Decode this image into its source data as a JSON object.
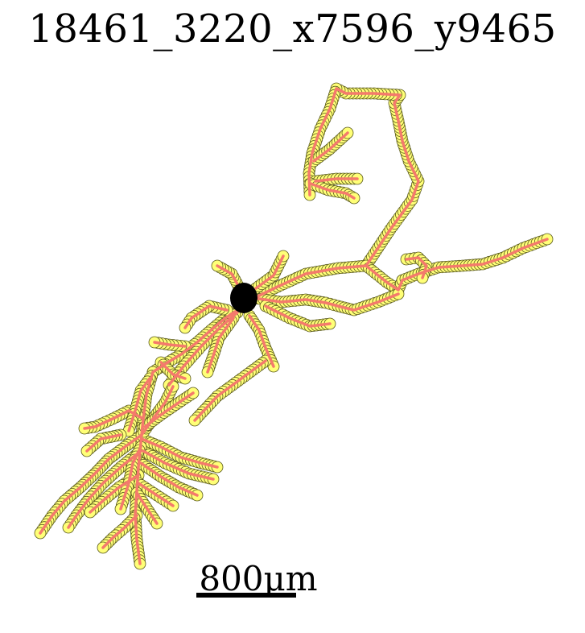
{
  "title": "18461_3220_x7596_y9465",
  "scale_bar": {
    "label": "800μm"
  },
  "colors": {
    "background": "#ffffff",
    "node_fill": "#ffff77",
    "node_stroke": "#5a5a1e",
    "edge": "#f47a6c",
    "soma": "#000000"
  }
}
